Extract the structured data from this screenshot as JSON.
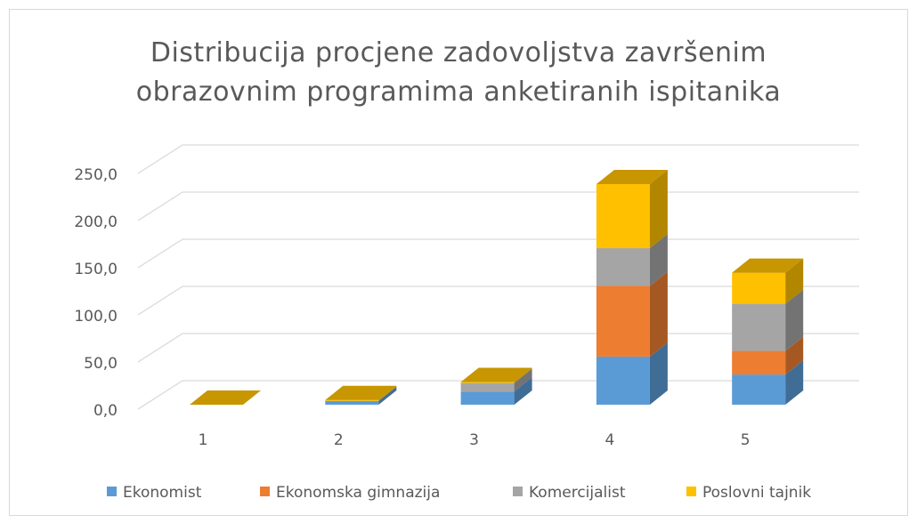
{
  "chart_data": {
    "type": "bar3d_stacked",
    "title": "Distribucija procjene zadovoljstva završenim obrazovnim programima anketiranih ispitanika",
    "categories": [
      "1",
      "2",
      "3",
      "4",
      "5"
    ],
    "series": [
      {
        "name": "Ekonomist",
        "color": "#5b9bd5",
        "values": [
          0,
          4,
          14,
          51,
          32
        ]
      },
      {
        "name": "Ekonomska gimnazija",
        "color": "#ed7d31",
        "values": [
          0,
          0,
          0,
          75,
          25
        ]
      },
      {
        "name": "Komercijalist",
        "color": "#a5a5a5",
        "values": [
          0,
          0,
          9,
          40,
          50
        ]
      },
      {
        "name": "Poslovni tajnik",
        "color": "#ffc000",
        "values": [
          0,
          1,
          1,
          68,
          33
        ]
      }
    ],
    "ylim": [
      0,
      250
    ],
    "yticks": [
      {
        "value": 0,
        "label": "0,0"
      },
      {
        "value": 50,
        "label": "50,0"
      },
      {
        "value": 100,
        "label": "100,0"
      },
      {
        "value": 150,
        "label": "150,0"
      },
      {
        "value": 200,
        "label": "200,0"
      },
      {
        "value": 250,
        "label": "250,0"
      }
    ],
    "grid": true,
    "legend": "bottom"
  }
}
